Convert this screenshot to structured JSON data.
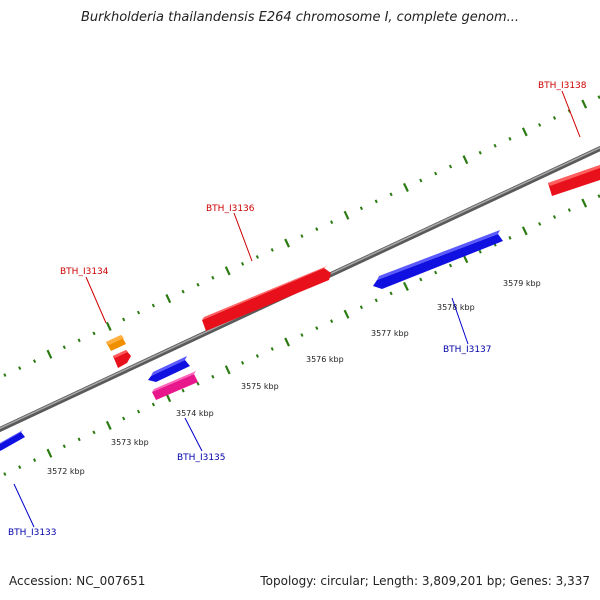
{
  "title": "Burkholderia thailandensis E264 chromosome I, complete genom...",
  "footer": {
    "accession": "Accession: NC_007651",
    "summary": "Topology: circular; Length: 3,809,201 bp; Genes: 3,337"
  },
  "colors": {
    "forward": "#e8101a",
    "reverse": "#1010e0",
    "orange": "#f09000",
    "pink": "#e8188c",
    "tick": "#2b7a12",
    "backbone": "#8a8a8a",
    "forward_label": "#cc0000",
    "reverse_label": "#0000aa"
  },
  "scale": {
    "unit": "kbp",
    "kbp_labels": [
      "3572 kbp",
      "3573 kbp",
      "3574 kbp",
      "3575 kbp",
      "3576 kbp",
      "3577 kbp",
      "3578 kbp",
      "3579 kbp"
    ]
  },
  "genes": [
    {
      "id": "BTH_I3133",
      "strand": "reverse"
    },
    {
      "id": "BTH_I3134",
      "strand": "forward"
    },
    {
      "id": "BTH_I3135",
      "strand": "reverse"
    },
    {
      "id": "BTH_I3136",
      "strand": "forward"
    },
    {
      "id": "BTH_I3137",
      "strand": "reverse"
    },
    {
      "id": "BTH_I3138",
      "strand": "forward"
    }
  ]
}
